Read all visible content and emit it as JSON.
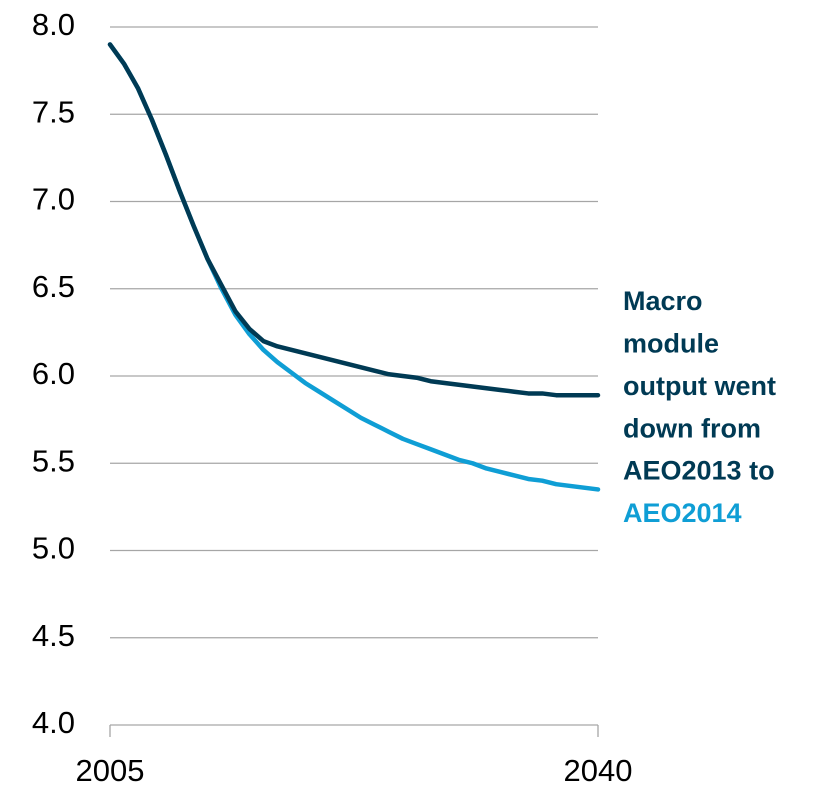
{
  "chart_data": {
    "type": "line",
    "x": [
      2005,
      2006,
      2007,
      2008,
      2009,
      2010,
      2011,
      2012,
      2013,
      2014,
      2015,
      2016,
      2017,
      2018,
      2019,
      2020,
      2021,
      2022,
      2023,
      2024,
      2025,
      2026,
      2027,
      2028,
      2029,
      2030,
      2031,
      2032,
      2033,
      2034,
      2035,
      2036,
      2037,
      2038,
      2039,
      2040
    ],
    "series": [
      {
        "color": "#003a54",
        "values": [
          7.9,
          7.79,
          7.65,
          7.47,
          7.27,
          7.06,
          6.86,
          6.67,
          6.52,
          6.37,
          6.27,
          6.2,
          6.17,
          6.15,
          6.13,
          6.11,
          6.09,
          6.07,
          6.05,
          6.03,
          6.01,
          6.0,
          5.99,
          5.97,
          5.96,
          5.95,
          5.94,
          5.93,
          5.92,
          5.91,
          5.9,
          5.9,
          5.89,
          5.89,
          5.89,
          5.89
        ]
      },
      {
        "color": "#0f9ed5",
        "values": [
          7.9,
          7.79,
          7.65,
          7.47,
          7.27,
          7.06,
          6.86,
          6.67,
          6.5,
          6.35,
          6.24,
          6.15,
          6.08,
          6.02,
          5.96,
          5.91,
          5.86,
          5.81,
          5.76,
          5.72,
          5.68,
          5.64,
          5.61,
          5.58,
          5.55,
          5.52,
          5.5,
          5.47,
          5.45,
          5.43,
          5.41,
          5.4,
          5.38,
          5.37,
          5.36,
          5.35
        ]
      }
    ],
    "xlim": [
      2005,
      2040
    ],
    "xticks": [
      2005,
      2040
    ],
    "ylim": [
      4.0,
      8.0
    ],
    "yticks": [
      {
        "value": 4.0,
        "label": "4.0"
      },
      {
        "value": 4.5,
        "label": "4.5"
      },
      {
        "value": 5.0,
        "label": "5.0"
      },
      {
        "value": 5.5,
        "label": "5.5"
      },
      {
        "value": 6.0,
        "label": "6.0"
      },
      {
        "value": 6.5,
        "label": "6.5"
      },
      {
        "value": 7.0,
        "label": "7.0"
      },
      {
        "value": 7.5,
        "label": "7.5"
      },
      {
        "value": 8.0,
        "label": "8.0"
      }
    ],
    "grid": true,
    "annotation": [
      "Macro",
      "module",
      "output went",
      "down from",
      "AEO2013 to",
      "AEO2014"
    ]
  }
}
